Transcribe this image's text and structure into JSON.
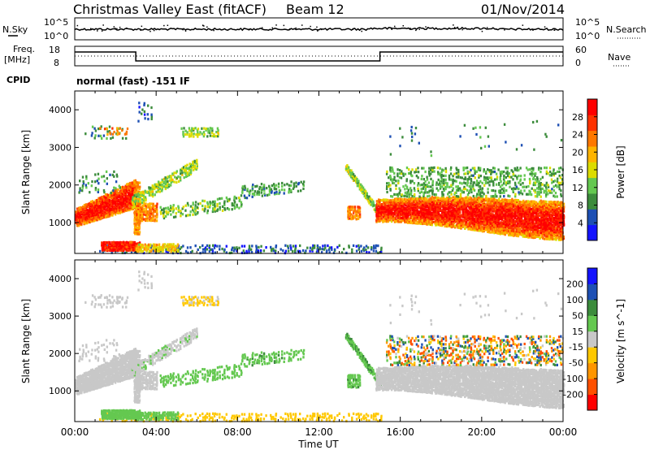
{
  "header": {
    "title": "Christmas Valley East (fitACF)",
    "beam": "Beam 12",
    "date": "01/Nov/2014"
  },
  "noise_panel": {
    "left_label": "N.Sky",
    "right_label": "N.Search",
    "ytick_top": "10^5",
    "ytick_bottom": "10^0"
  },
  "freq_panel": {
    "left_label_1": "Freq.",
    "left_label_2": "[MHz]",
    "ytick_top": "18",
    "ytick_bottom": "8",
    "right_label": "Nave",
    "right_tick_top": "60",
    "right_tick_bottom": "0"
  },
  "cpid": {
    "label": "CPID",
    "text": "normal (fast) -151 IF"
  },
  "colors": {
    "power": [
      "#1414ff",
      "#1e50b4",
      "#3c8c3c",
      "#64c850",
      "#dcdc00",
      "#ffb400",
      "#ff7800",
      "#ff3200",
      "#ff0000"
    ],
    "velocity": [
      "#ff0000",
      "#ff5000",
      "#ff9600",
      "#ffc800",
      "#c8c8c8",
      "#64c850",
      "#3c8c3c",
      "#1e50b4",
      "#1414ff"
    ],
    "gray": "#c8c8c8"
  },
  "chart_data": [
    {
      "type": "heatmap",
      "name": "power",
      "ylabel": "Slant Range [km]",
      "ylim": [
        180,
        4500
      ],
      "yticks": [
        "1000",
        "2000",
        "3000",
        "4000"
      ],
      "xlim": [
        0,
        24
      ],
      "colorbar": {
        "label": "Power [dB]",
        "ticks": [
          "4",
          "8",
          "12",
          "16",
          "20",
          "24",
          "28"
        ],
        "range": [
          0,
          32
        ]
      }
    },
    {
      "type": "heatmap",
      "name": "velocity",
      "ylabel": "Slant Range [km]",
      "ylim": [
        180,
        4500
      ],
      "yticks": [
        "1000",
        "2000",
        "3000",
        "4000"
      ],
      "xlim": [
        0,
        24
      ],
      "xticks": [
        "00:00",
        "04:00",
        "08:00",
        "12:00",
        "16:00",
        "20:00",
        "00:00"
      ],
      "xlabel": "Time UT",
      "colorbar": {
        "label": "Velocity [m s^-1]",
        "ticks": [
          "200",
          "100",
          "50",
          "15",
          "-15",
          "-50",
          "-100",
          "-200"
        ]
      }
    }
  ]
}
